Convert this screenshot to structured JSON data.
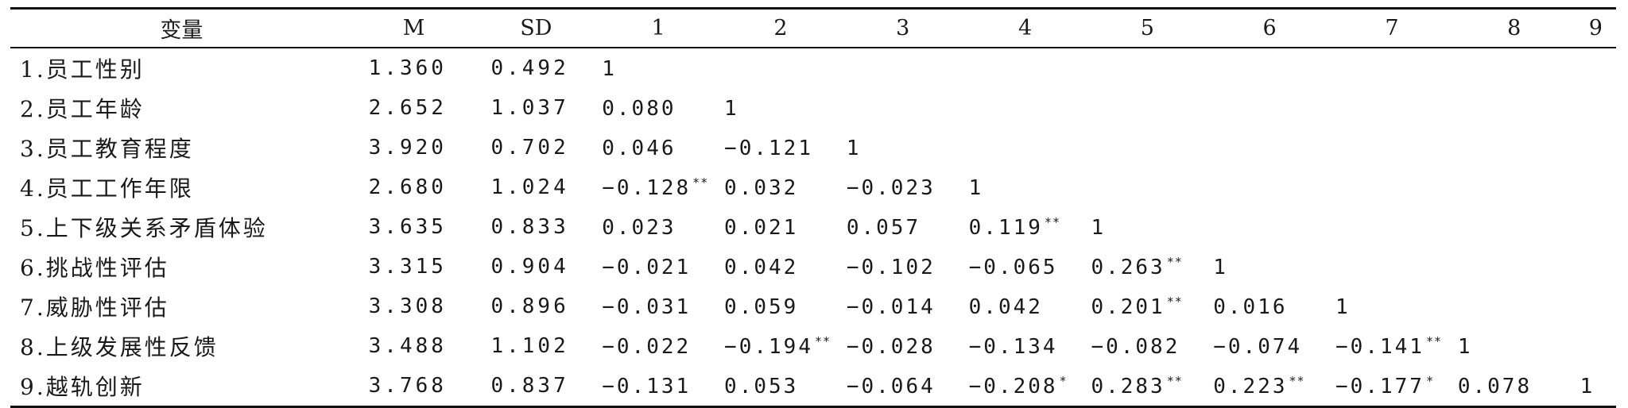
{
  "table": {
    "headers": [
      "变量",
      "M",
      "SD",
      "1",
      "2",
      "3",
      "4",
      "5",
      "6",
      "7",
      "8",
      "9"
    ],
    "rows": [
      {
        "label": "1.员工性别",
        "m": "1.360",
        "sd": "0.492",
        "cells": [
          {
            "v": "1",
            "s": ""
          },
          {
            "v": "",
            "s": ""
          },
          {
            "v": "",
            "s": ""
          },
          {
            "v": "",
            "s": ""
          },
          {
            "v": "",
            "s": ""
          },
          {
            "v": "",
            "s": ""
          },
          {
            "v": "",
            "s": ""
          },
          {
            "v": "",
            "s": ""
          },
          {
            "v": "",
            "s": ""
          }
        ]
      },
      {
        "label": "2.员工年龄",
        "m": "2.652",
        "sd": "1.037",
        "cells": [
          {
            "v": "0.080",
            "s": ""
          },
          {
            "v": "1",
            "s": ""
          },
          {
            "v": "",
            "s": ""
          },
          {
            "v": "",
            "s": ""
          },
          {
            "v": "",
            "s": ""
          },
          {
            "v": "",
            "s": ""
          },
          {
            "v": "",
            "s": ""
          },
          {
            "v": "",
            "s": ""
          },
          {
            "v": "",
            "s": ""
          }
        ]
      },
      {
        "label": "3.员工教育程度",
        "m": "3.920",
        "sd": "0.702",
        "cells": [
          {
            "v": "0.046",
            "s": ""
          },
          {
            "v": "−0.121",
            "s": ""
          },
          {
            "v": "1",
            "s": ""
          },
          {
            "v": "",
            "s": ""
          },
          {
            "v": "",
            "s": ""
          },
          {
            "v": "",
            "s": ""
          },
          {
            "v": "",
            "s": ""
          },
          {
            "v": "",
            "s": ""
          },
          {
            "v": "",
            "s": ""
          }
        ]
      },
      {
        "label": "4.员工工作年限",
        "m": "2.680",
        "sd": "1.024",
        "cells": [
          {
            "v": "−0.128",
            "s": "**"
          },
          {
            "v": "0.032",
            "s": ""
          },
          {
            "v": "−0.023",
            "s": ""
          },
          {
            "v": "1",
            "s": ""
          },
          {
            "v": "",
            "s": ""
          },
          {
            "v": "",
            "s": ""
          },
          {
            "v": "",
            "s": ""
          },
          {
            "v": "",
            "s": ""
          },
          {
            "v": "",
            "s": ""
          }
        ]
      },
      {
        "label": "5.上下级关系矛盾体验",
        "m": "3.635",
        "sd": "0.833",
        "cells": [
          {
            "v": "0.023",
            "s": ""
          },
          {
            "v": "0.021",
            "s": ""
          },
          {
            "v": "0.057",
            "s": ""
          },
          {
            "v": "0.119",
            "s": "**"
          },
          {
            "v": "1",
            "s": ""
          },
          {
            "v": "",
            "s": ""
          },
          {
            "v": "",
            "s": ""
          },
          {
            "v": "",
            "s": ""
          },
          {
            "v": "",
            "s": ""
          }
        ]
      },
      {
        "label": "6.挑战性评估",
        "m": "3.315",
        "sd": "0.904",
        "cells": [
          {
            "v": "−0.021",
            "s": ""
          },
          {
            "v": "0.042",
            "s": ""
          },
          {
            "v": "−0.102",
            "s": ""
          },
          {
            "v": "−0.065",
            "s": ""
          },
          {
            "v": "0.263",
            "s": "**"
          },
          {
            "v": "1",
            "s": ""
          },
          {
            "v": "",
            "s": ""
          },
          {
            "v": "",
            "s": ""
          },
          {
            "v": "",
            "s": ""
          }
        ]
      },
      {
        "label": "7.威胁性评估",
        "m": "3.308",
        "sd": "0.896",
        "cells": [
          {
            "v": "−0.031",
            "s": ""
          },
          {
            "v": "0.059",
            "s": ""
          },
          {
            "v": "−0.014",
            "s": ""
          },
          {
            "v": "0.042",
            "s": ""
          },
          {
            "v": "0.201",
            "s": "**"
          },
          {
            "v": "0.016",
            "s": ""
          },
          {
            "v": "1",
            "s": ""
          },
          {
            "v": "",
            "s": ""
          },
          {
            "v": "",
            "s": ""
          }
        ]
      },
      {
        "label": "8.上级发展性反馈",
        "m": "3.488",
        "sd": "1.102",
        "cells": [
          {
            "v": "−0.022",
            "s": ""
          },
          {
            "v": "−0.194",
            "s": "**"
          },
          {
            "v": "−0.028",
            "s": ""
          },
          {
            "v": "−0.134",
            "s": ""
          },
          {
            "v": "−0.082",
            "s": ""
          },
          {
            "v": "−0.074",
            "s": ""
          },
          {
            "v": "−0.141",
            "s": "**"
          },
          {
            "v": "1",
            "s": ""
          },
          {
            "v": "",
            "s": ""
          }
        ]
      },
      {
        "label": "9.越轨创新",
        "m": "3.768",
        "sd": "0.837",
        "cells": [
          {
            "v": "−0.131",
            "s": ""
          },
          {
            "v": "0.053",
            "s": ""
          },
          {
            "v": "−0.064",
            "s": ""
          },
          {
            "v": "−0.208",
            "s": "*"
          },
          {
            "v": "0.283",
            "s": "**"
          },
          {
            "v": "0.223",
            "s": "**"
          },
          {
            "v": "−0.177",
            "s": "*"
          },
          {
            "v": "0.078",
            "s": ""
          },
          {
            "v": "1",
            "s": ""
          }
        ]
      }
    ]
  }
}
